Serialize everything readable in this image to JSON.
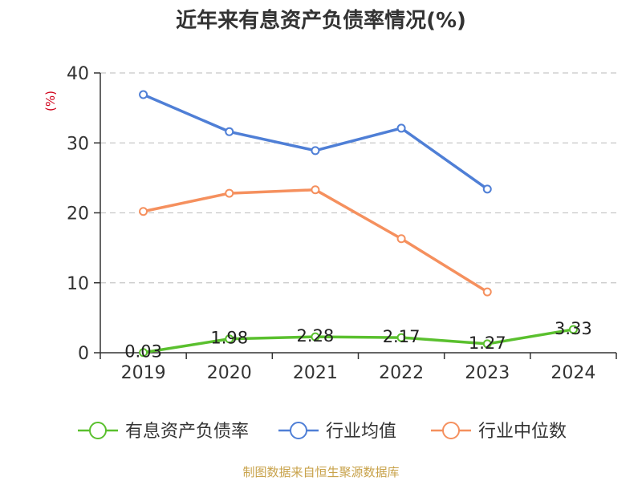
{
  "chart_data": {
    "type": "line",
    "title": "近年来有息资产负债率情况(%)",
    "unit_label": "(%)",
    "categories": [
      "2019",
      "2020",
      "2021",
      "2022",
      "2023",
      "2024"
    ],
    "ylim": [
      0,
      40
    ],
    "yticks": [
      0,
      10,
      20,
      30,
      40
    ],
    "grid": true,
    "legend_position": "bottom",
    "series": [
      {
        "name": "有息资产负债率",
        "color": "#5ac02e",
        "values": [
          0.03,
          1.98,
          2.28,
          2.17,
          1.27,
          3.33
        ],
        "labels": [
          "0.03",
          "1.98",
          "2.28",
          "2.17",
          "1.27",
          "3.33"
        ]
      },
      {
        "name": "行业均值",
        "color": "#4f7fd6",
        "values": [
          36.9,
          31.6,
          28.9,
          32.1,
          23.4,
          null
        ]
      },
      {
        "name": "行业中位数",
        "color": "#f5905e",
        "values": [
          20.2,
          22.8,
          23.3,
          16.3,
          8.7,
          null
        ]
      }
    ],
    "source": "制图数据来自恒生聚源数据库"
  }
}
